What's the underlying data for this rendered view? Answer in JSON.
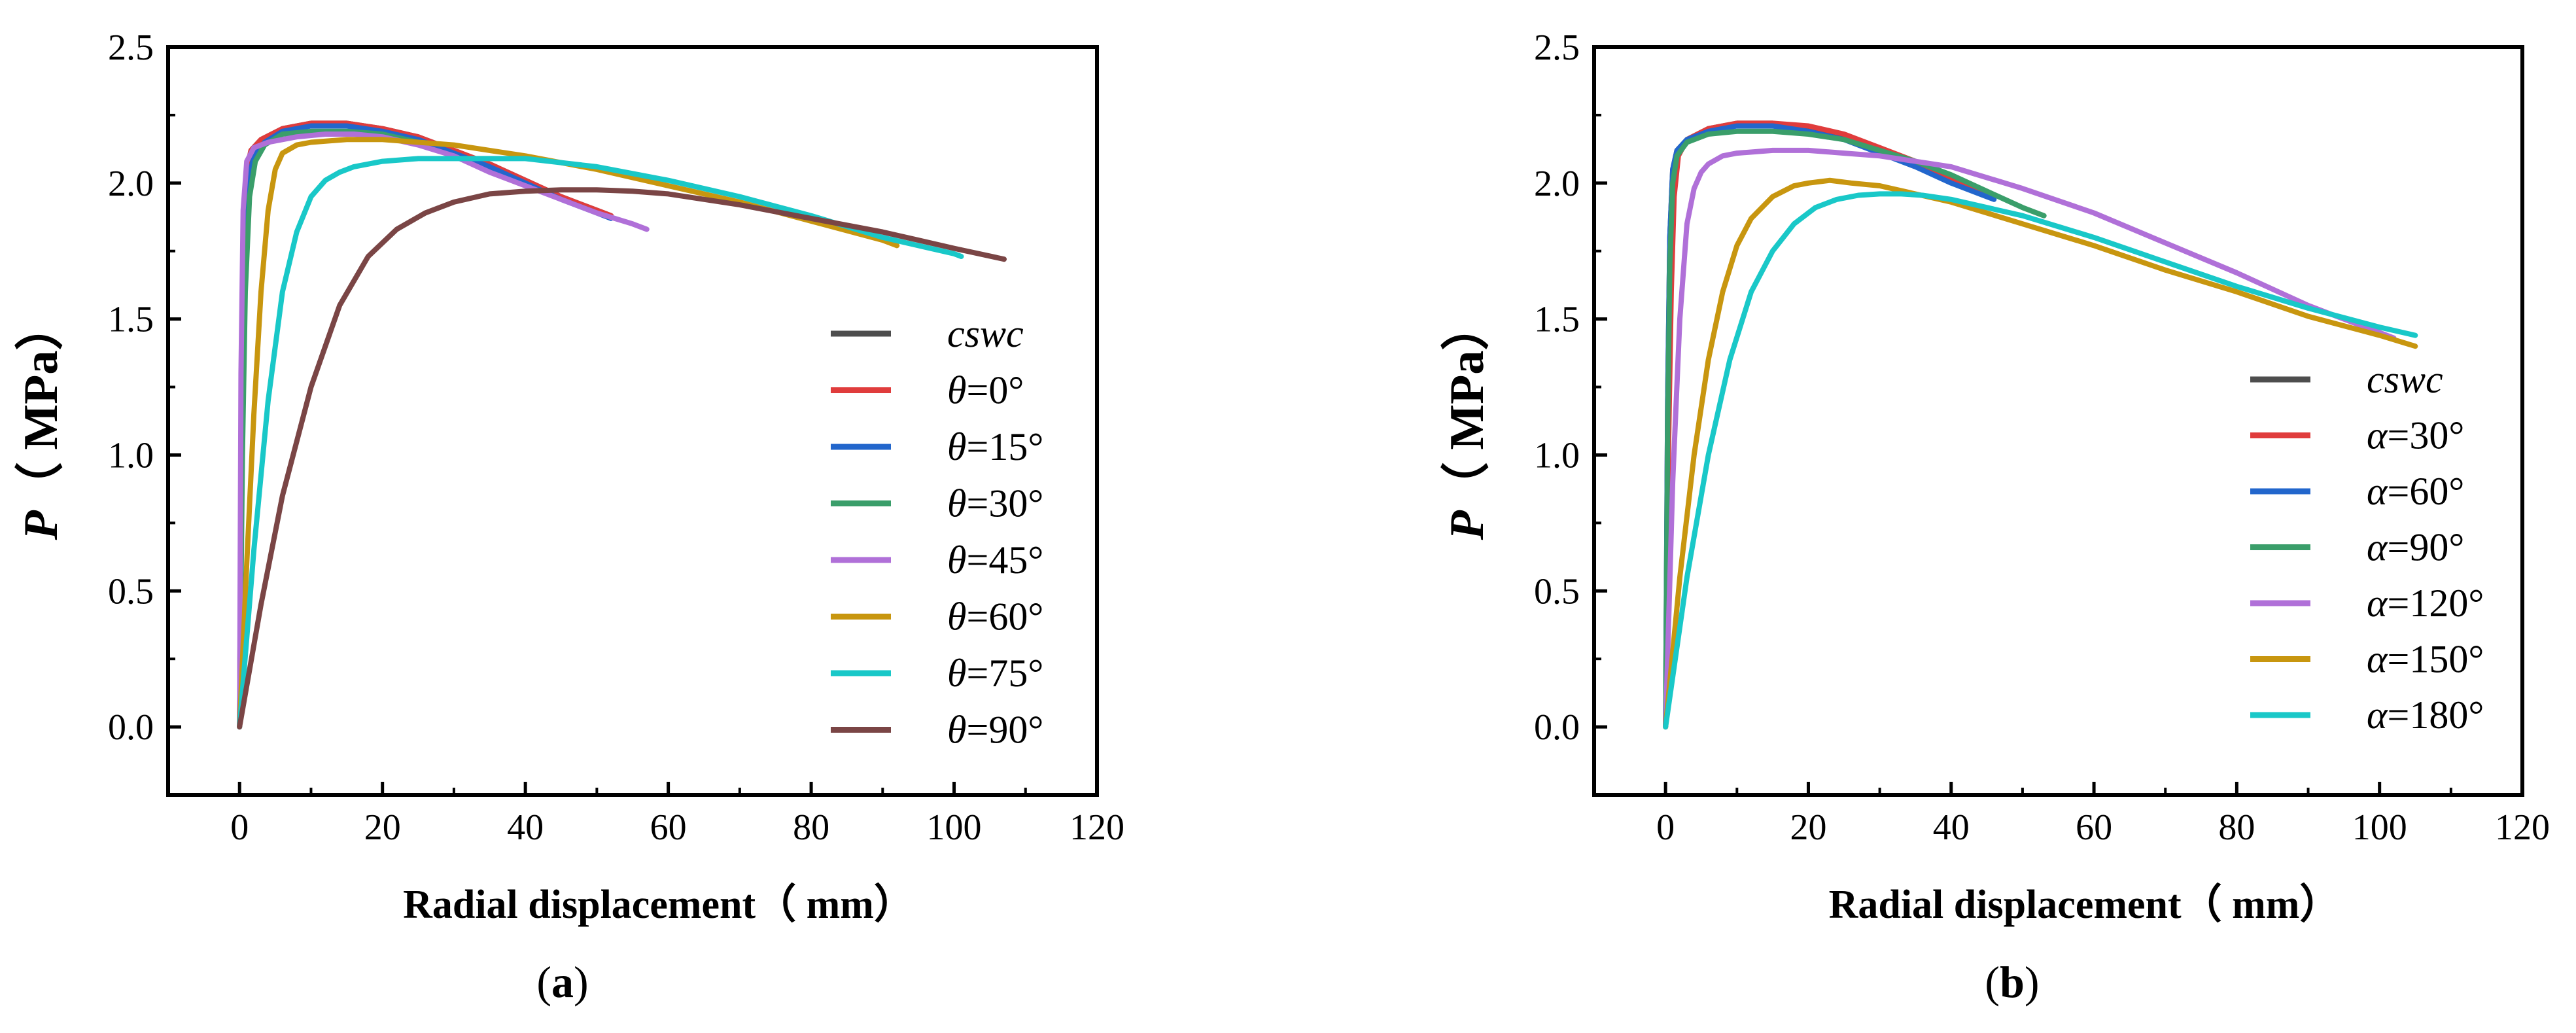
{
  "chart_data": [
    {
      "type": "line",
      "panel_label": "a",
      "xlabel": "Radial displacement（ mm）",
      "ylabel": "P（ MPa）",
      "xlim": [
        -10,
        120
      ],
      "ylim": [
        -0.25,
        2.5
      ],
      "xticks": [
        0,
        20,
        40,
        60,
        80,
        100,
        120
      ],
      "yticks": [
        0.0,
        0.5,
        1.0,
        1.5,
        2.0,
        2.5
      ],
      "legend_position": "right",
      "series": [
        {
          "name": "cswc",
          "var": "",
          "color": "#4d4d4d",
          "x": [
            0,
            0.3,
            0.6,
            1,
            1.6,
            3,
            6,
            10,
            15,
            20,
            25,
            30,
            35,
            40,
            45,
            50,
            52
          ],
          "y": [
            0,
            1.2,
            1.8,
            2.05,
            2.12,
            2.16,
            2.2,
            2.22,
            2.22,
            2.2,
            2.17,
            2.12,
            2.07,
            2.01,
            1.95,
            1.9,
            1.88
          ]
        },
        {
          "name": "=0°",
          "var": "θ",
          "color": "#e03c3c",
          "x": [
            0,
            0.3,
            0.6,
            1,
            1.6,
            3,
            6,
            10,
            15,
            20,
            25,
            30,
            35,
            40,
            45,
            50,
            52
          ],
          "y": [
            0,
            1.2,
            1.8,
            2.05,
            2.12,
            2.16,
            2.2,
            2.22,
            2.22,
            2.2,
            2.17,
            2.12,
            2.07,
            2.01,
            1.95,
            1.9,
            1.88
          ]
        },
        {
          "name": "=15°",
          "var": "θ",
          "color": "#2266cc",
          "x": [
            0,
            0.3,
            0.7,
            1.2,
            2,
            3.5,
            6,
            10,
            15,
            20,
            25,
            30,
            35,
            40,
            45,
            50,
            52
          ],
          "y": [
            0,
            1.1,
            1.7,
            2.0,
            2.1,
            2.15,
            2.19,
            2.21,
            2.21,
            2.19,
            2.16,
            2.11,
            2.06,
            2.0,
            1.94,
            1.89,
            1.87
          ]
        },
        {
          "name": "=30°",
          "var": "θ",
          "color": "#3a9e6a",
          "x": [
            0,
            0.4,
            0.8,
            1.4,
            2.2,
            3.5,
            6,
            10,
            15,
            20,
            25
          ],
          "y": [
            0,
            1.0,
            1.6,
            1.95,
            2.08,
            2.14,
            2.18,
            2.19,
            2.19,
            2.18,
            2.15
          ]
        },
        {
          "name": "=45°",
          "var": "θ",
          "color": "#b070d8",
          "x": [
            0,
            0.2,
            0.5,
            1,
            2,
            4,
            8,
            12,
            16,
            20,
            25,
            30,
            35,
            40,
            45,
            50,
            55,
            57
          ],
          "y": [
            0,
            1.3,
            1.9,
            2.08,
            2.13,
            2.15,
            2.17,
            2.18,
            2.18,
            2.17,
            2.14,
            2.1,
            2.04,
            1.99,
            1.94,
            1.89,
            1.85,
            1.83
          ]
        },
        {
          "name": "=60°",
          "var": "θ",
          "color": "#c8960f",
          "x": [
            0,
            1,
            2,
            3,
            4,
            5,
            6,
            8,
            10,
            15,
            20,
            30,
            40,
            50,
            60,
            70,
            80,
            90,
            92
          ],
          "y": [
            0,
            0.6,
            1.15,
            1.6,
            1.9,
            2.05,
            2.11,
            2.14,
            2.15,
            2.16,
            2.16,
            2.14,
            2.1,
            2.05,
            1.99,
            1.93,
            1.86,
            1.79,
            1.77
          ]
        },
        {
          "name": "=75°",
          "var": "θ",
          "color": "#19c8c8",
          "x": [
            0,
            2,
            4,
            6,
            8,
            10,
            12,
            14,
            16,
            20,
            25,
            30,
            40,
            50,
            60,
            70,
            80,
            90,
            100,
            101
          ],
          "y": [
            0,
            0.65,
            1.2,
            1.6,
            1.82,
            1.95,
            2.01,
            2.04,
            2.06,
            2.08,
            2.09,
            2.09,
            2.09,
            2.06,
            2.01,
            1.95,
            1.88,
            1.8,
            1.74,
            1.73
          ]
        },
        {
          "name": "=90°",
          "var": "θ",
          "color": "#7a4545",
          "x": [
            0,
            3,
            6,
            10,
            14,
            18,
            22,
            26,
            30,
            35,
            40,
            45,
            50,
            55,
            60,
            70,
            80,
            90,
            100,
            107
          ],
          "y": [
            0,
            0.45,
            0.85,
            1.25,
            1.55,
            1.73,
            1.83,
            1.89,
            1.93,
            1.96,
            1.97,
            1.975,
            1.975,
            1.97,
            1.96,
            1.92,
            1.87,
            1.82,
            1.76,
            1.72
          ]
        }
      ]
    },
    {
      "type": "line",
      "panel_label": "b",
      "xlabel": "Radial displacement（ mm）",
      "ylabel": "P（ MPa）",
      "xlim": [
        -10,
        120
      ],
      "ylim": [
        -0.25,
        2.5
      ],
      "xticks": [
        0,
        20,
        40,
        60,
        80,
        100,
        120
      ],
      "yticks": [
        0.0,
        0.5,
        1.0,
        1.5,
        2.0,
        2.5
      ],
      "legend_position": "right",
      "series": [
        {
          "name": "cswc",
          "var": "",
          "color": "#4d4d4d",
          "x": [
            0,
            0.3,
            0.6,
            1,
            1.6,
            3,
            6,
            10,
            15,
            20,
            25,
            30,
            35,
            40,
            45,
            46
          ],
          "y": [
            0,
            1.2,
            1.8,
            2.05,
            2.12,
            2.16,
            2.2,
            2.22,
            2.22,
            2.2,
            2.17,
            2.12,
            2.07,
            2.01,
            1.96,
            1.95
          ]
        },
        {
          "name": "=30°",
          "var": "α",
          "color": "#e03c3c",
          "x": [
            0,
            0.4,
            0.8,
            1.2,
            1.8,
            3,
            6,
            10,
            15,
            20,
            25,
            30,
            35,
            40,
            45,
            46
          ],
          "y": [
            0,
            1.0,
            1.6,
            1.95,
            2.1,
            2.16,
            2.2,
            2.22,
            2.22,
            2.21,
            2.18,
            2.13,
            2.08,
            2.02,
            1.96,
            1.95
          ]
        },
        {
          "name": "=60°",
          "var": "α",
          "color": "#2266cc",
          "x": [
            0,
            0.3,
            0.6,
            1,
            1.6,
            3,
            6,
            10,
            15,
            20,
            25,
            30,
            35,
            40,
            45,
            46
          ],
          "y": [
            0,
            1.2,
            1.8,
            2.05,
            2.12,
            2.16,
            2.19,
            2.21,
            2.21,
            2.19,
            2.16,
            2.11,
            2.06,
            2.0,
            1.95,
            1.94
          ]
        },
        {
          "name": "=90°",
          "var": "α",
          "color": "#3a9e6a",
          "x": [
            0,
            0.3,
            0.6,
            1,
            1.6,
            3,
            6,
            10,
            15,
            20,
            25,
            30,
            35,
            40,
            45,
            50,
            53
          ],
          "y": [
            0,
            1.1,
            1.7,
            2.0,
            2.1,
            2.15,
            2.18,
            2.19,
            2.19,
            2.18,
            2.16,
            2.12,
            2.08,
            2.03,
            1.97,
            1.91,
            1.88
          ]
        },
        {
          "name": "=120°",
          "var": "α",
          "color": "#b070d8",
          "x": [
            0,
            1,
            2,
            3,
            4,
            5,
            6,
            8,
            10,
            15,
            20,
            25,
            30,
            40,
            50,
            60,
            70,
            80,
            90,
            100,
            102
          ],
          "y": [
            0,
            0.9,
            1.5,
            1.85,
            1.98,
            2.04,
            2.07,
            2.1,
            2.11,
            2.12,
            2.12,
            2.11,
            2.1,
            2.06,
            1.98,
            1.89,
            1.78,
            1.67,
            1.55,
            1.45,
            1.43
          ]
        },
        {
          "name": "=150°",
          "var": "α",
          "color": "#c8960f",
          "x": [
            0,
            2,
            4,
            6,
            8,
            10,
            12,
            15,
            18,
            20,
            23,
            26,
            30,
            40,
            50,
            60,
            70,
            80,
            90,
            100,
            105
          ],
          "y": [
            0,
            0.55,
            1.0,
            1.35,
            1.6,
            1.77,
            1.87,
            1.95,
            1.99,
            2.0,
            2.01,
            2.0,
            1.99,
            1.93,
            1.85,
            1.77,
            1.68,
            1.6,
            1.51,
            1.44,
            1.4
          ]
        },
        {
          "name": "=180°",
          "var": "α",
          "color": "#19c8c8",
          "x": [
            0,
            3,
            6,
            9,
            12,
            15,
            18,
            21,
            24,
            27,
            30,
            33,
            36,
            40,
            50,
            60,
            70,
            80,
            90,
            100,
            105
          ],
          "y": [
            0,
            0.55,
            1.0,
            1.35,
            1.6,
            1.75,
            1.85,
            1.91,
            1.94,
            1.955,
            1.96,
            1.96,
            1.955,
            1.94,
            1.88,
            1.8,
            1.71,
            1.62,
            1.54,
            1.47,
            1.44
          ]
        }
      ]
    }
  ]
}
